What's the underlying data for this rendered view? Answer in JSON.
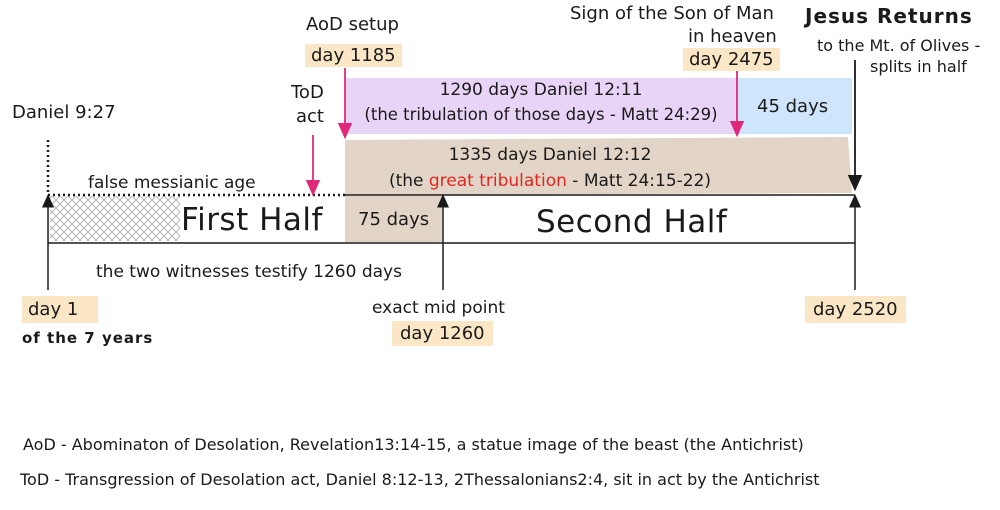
{
  "top_labels": {
    "aod_setup": "AoD setup",
    "aod_day": "day 1185",
    "sign_line1": "Sign of the Son of Man",
    "sign_line2": "in heaven",
    "sign_day": "day 2475",
    "jesus_returns": "Jesus Returns",
    "olives_line1": "to the Mt. of Olives -",
    "olives_line2": "splits in half",
    "daniel_927": "Daniel 9:27",
    "tod_line1": "ToD",
    "tod_line2": "act"
  },
  "bands": {
    "purple_line1": "1290 days   Daniel 12:11",
    "purple_line2": "(the tribulation of those days - Matt 24:29)",
    "blue": "45 days",
    "tan_line1": "1335 days   Daniel 12:12",
    "tan_line2_pre": "(the ",
    "tan_line2_red": "great tribulation",
    "tan_line2_post": " - Matt 24:15-22)",
    "tan_small": "75 days"
  },
  "timeline": {
    "false_age": "false messianic age",
    "first_half": "First Half",
    "second_half": "Second Half",
    "witnesses": "the two witnesses testify 1260 days"
  },
  "bottom_labels": {
    "day1": "day 1",
    "of_7_years": "of the 7 years",
    "midpoint": "exact mid point",
    "mid_day": "day 1260",
    "end_day": "day 2520"
  },
  "legend": {
    "aod": "AoD - Abominaton of Desolation, Revelation13:14-15, a statue image of the beast (the Antichrist)",
    "tod": "ToD - Transgression of Desolation act, Daniel 8:12-13, 2Thessalonians2:4, sit in act by the Antichrist"
  },
  "colors": {
    "purple_band": "#e8d4f7",
    "blue_band": "#cfe5fb",
    "tan_band": "#e2d5c8",
    "highlight": "#fbe7c6",
    "pink_arrow": "#e0287a",
    "red_text": "#e0281f"
  }
}
